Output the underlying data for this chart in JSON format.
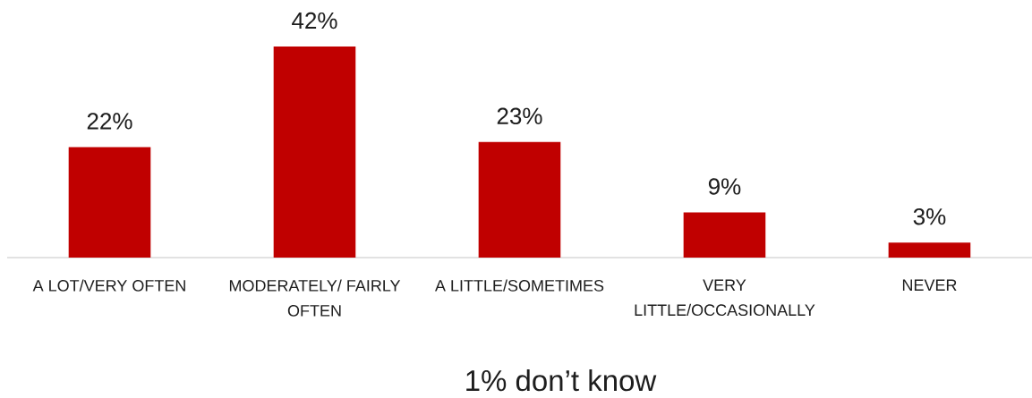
{
  "chart_data": {
    "type": "bar",
    "categories": [
      "A LOT/VERY OFTEN",
      "MODERATELY/ FAIRLY OFTEN",
      "A LITTLE/SOMETIMES",
      "VERY LITTLE/OCCASIONALLY",
      "NEVER"
    ],
    "values": [
      22,
      42,
      23,
      9,
      3
    ],
    "value_labels": [
      "22%",
      "42%",
      "23%",
      "9%",
      "3%"
    ],
    "color": "#c00000",
    "annotations": [
      "1% don’t know"
    ]
  }
}
